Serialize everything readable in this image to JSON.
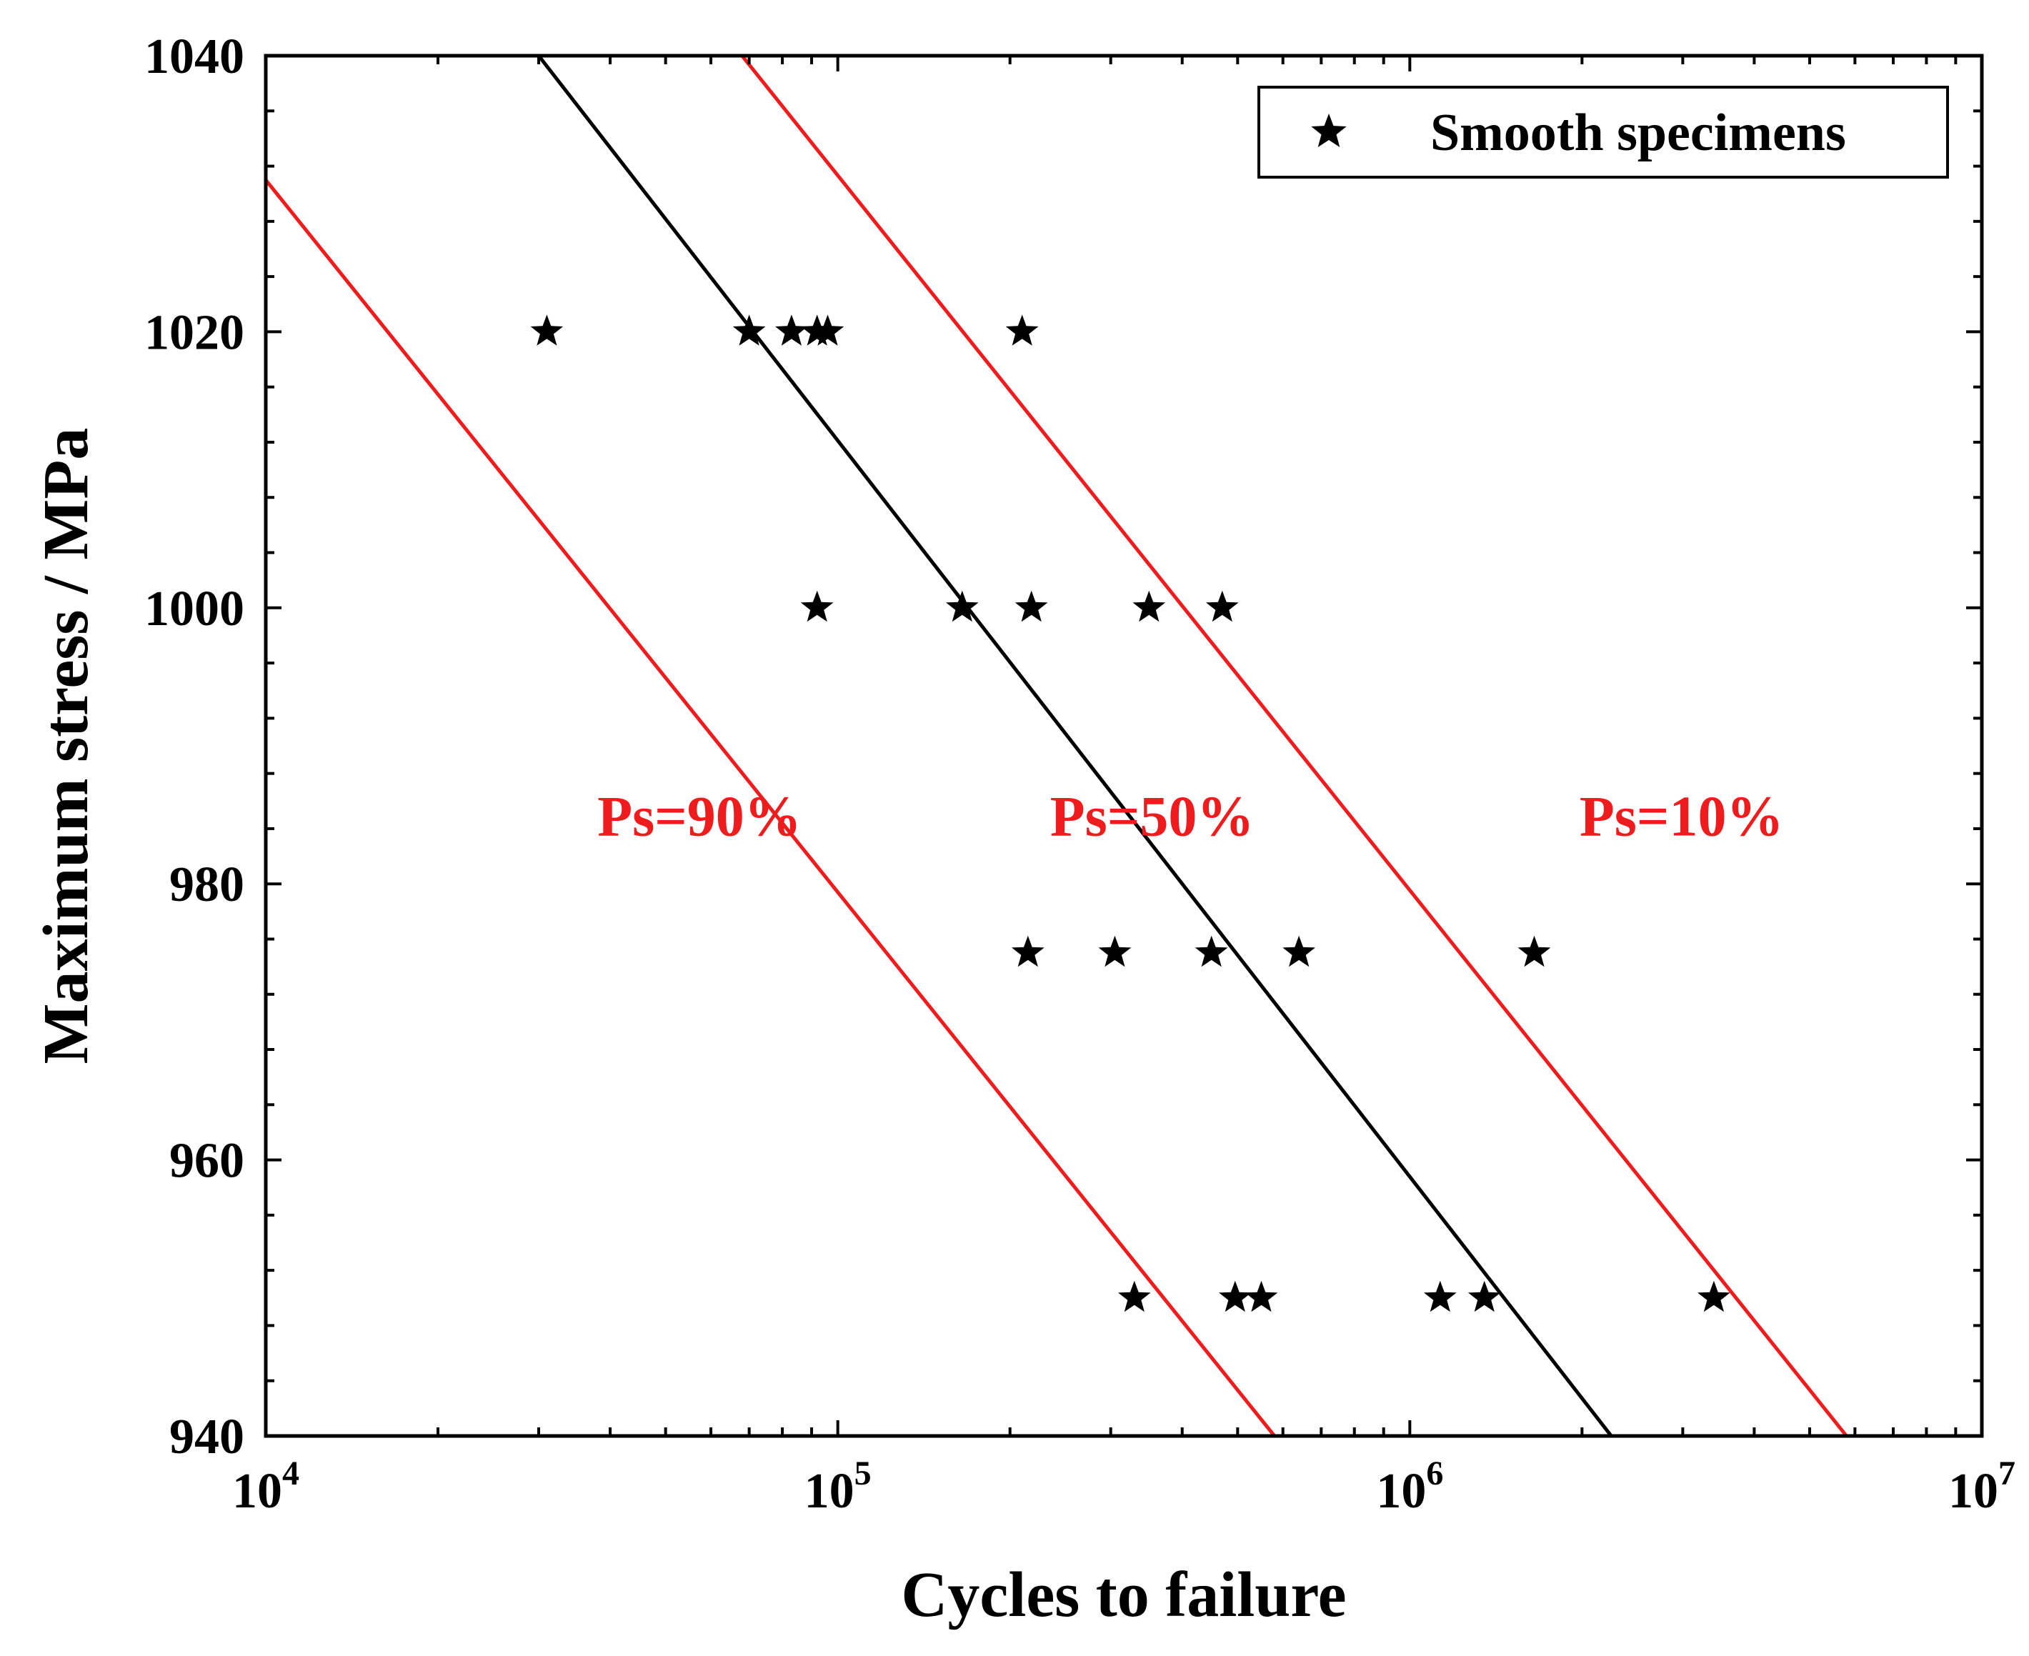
{
  "chart_data": {
    "type": "scatter",
    "title": "",
    "xlabel": "Cycles to failure",
    "ylabel": "Maximum stress / MPa",
    "xscale": "log",
    "xlim": [
      10000,
      10000000
    ],
    "ylim": [
      940,
      1040
    ],
    "xticks": [
      {
        "value": 10000,
        "base": "10",
        "exp": "4"
      },
      {
        "value": 100000,
        "base": "10",
        "exp": "5"
      },
      {
        "value": 1000000,
        "base": "10",
        "exp": "6"
      },
      {
        "value": 10000000,
        "base": "10",
        "exp": "7"
      }
    ],
    "yticks": [
      940,
      960,
      980,
      1000,
      1020,
      1040
    ],
    "grid": false,
    "legend_position": "top-right",
    "legend": [
      {
        "label": "Smooth specimens",
        "marker": "star"
      }
    ],
    "series": [
      {
        "name": "Smooth specimens",
        "marker": "star",
        "color": "#000000",
        "points": [
          [
            31000,
            1020
          ],
          [
            70000,
            1020
          ],
          [
            83000,
            1020
          ],
          [
            92000,
            1020
          ],
          [
            96000,
            1020
          ],
          [
            210000,
            1020
          ],
          [
            92000,
            1000
          ],
          [
            165000,
            1000
          ],
          [
            218000,
            1000
          ],
          [
            350000,
            1000
          ],
          [
            470000,
            1000
          ],
          [
            215000,
            975
          ],
          [
            305000,
            975
          ],
          [
            450000,
            975
          ],
          [
            640000,
            975
          ],
          [
            1650000,
            975
          ],
          [
            330000,
            950
          ],
          [
            495000,
            950
          ],
          [
            550000,
            950
          ],
          [
            1130000,
            950
          ],
          [
            1350000,
            950
          ],
          [
            3400000,
            950
          ]
        ]
      }
    ],
    "fit_lines": [
      {
        "label": "Ps=90%",
        "color": "#ee1c1c",
        "x": [
          10000,
          580000
        ],
        "y": [
          1031,
          940
        ]
      },
      {
        "label": "Ps=50%",
        "color": "#000000",
        "x": [
          30000,
          2250000
        ],
        "y": [
          1040,
          940
        ]
      },
      {
        "label": "Ps=10%",
        "color": "#ee1c1c",
        "x": [
          68000,
          5800000
        ],
        "y": [
          1040,
          940
        ]
      }
    ],
    "annotations": [
      {
        "text": "Ps=90%",
        "x": 38000,
        "y": 983.5,
        "color": "#ee1c1c"
      },
      {
        "text": "Ps=50%",
        "x": 235000,
        "y": 983.5,
        "color": "#ee1c1c"
      },
      {
        "text": "Ps=10%",
        "x": 1980000,
        "y": 983.5,
        "color": "#ee1c1c"
      }
    ]
  }
}
